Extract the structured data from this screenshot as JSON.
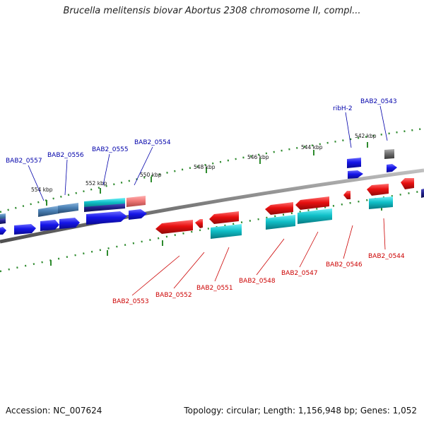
{
  "title": "Brucella melitensis biovar Abortus 2308 chromosome II, compl...",
  "footer": {
    "accession": "Accession: NC_007624",
    "summary": "Topology: circular; Length: 1,156,948 bp; Genes: 1,052"
  },
  "colors": {
    "backbone": "#808080",
    "ticks": "#228b22",
    "label_forward": "#0000aa",
    "label_reverse": "#cc0000",
    "gene_blue": "#1010e0",
    "gene_red": "#e01010",
    "gene_cyan": "#10c8d0",
    "gene_steel": "#4a7fb0",
    "gene_pink": "#f08080",
    "gene_gray": "#707070"
  },
  "scale_labels": [
    "554 kbp",
    "552 kbp",
    "550 kbp",
    "548 kbp",
    "546 kbp",
    "544 kbp",
    "542 kbp"
  ],
  "forward_labels": [
    "BAB2_0557",
    "BAB2_0556",
    "BAB2_0555",
    "BAB2_0554",
    "ribH-2",
    "BAB2_0543"
  ],
  "reverse_labels": [
    "BAB2_0553",
    "BAB2_0552",
    "BAB2_0551",
    "BAB2_0548",
    "BAB2_0547",
    "BAB2_0546",
    "BAB2_0544"
  ]
}
